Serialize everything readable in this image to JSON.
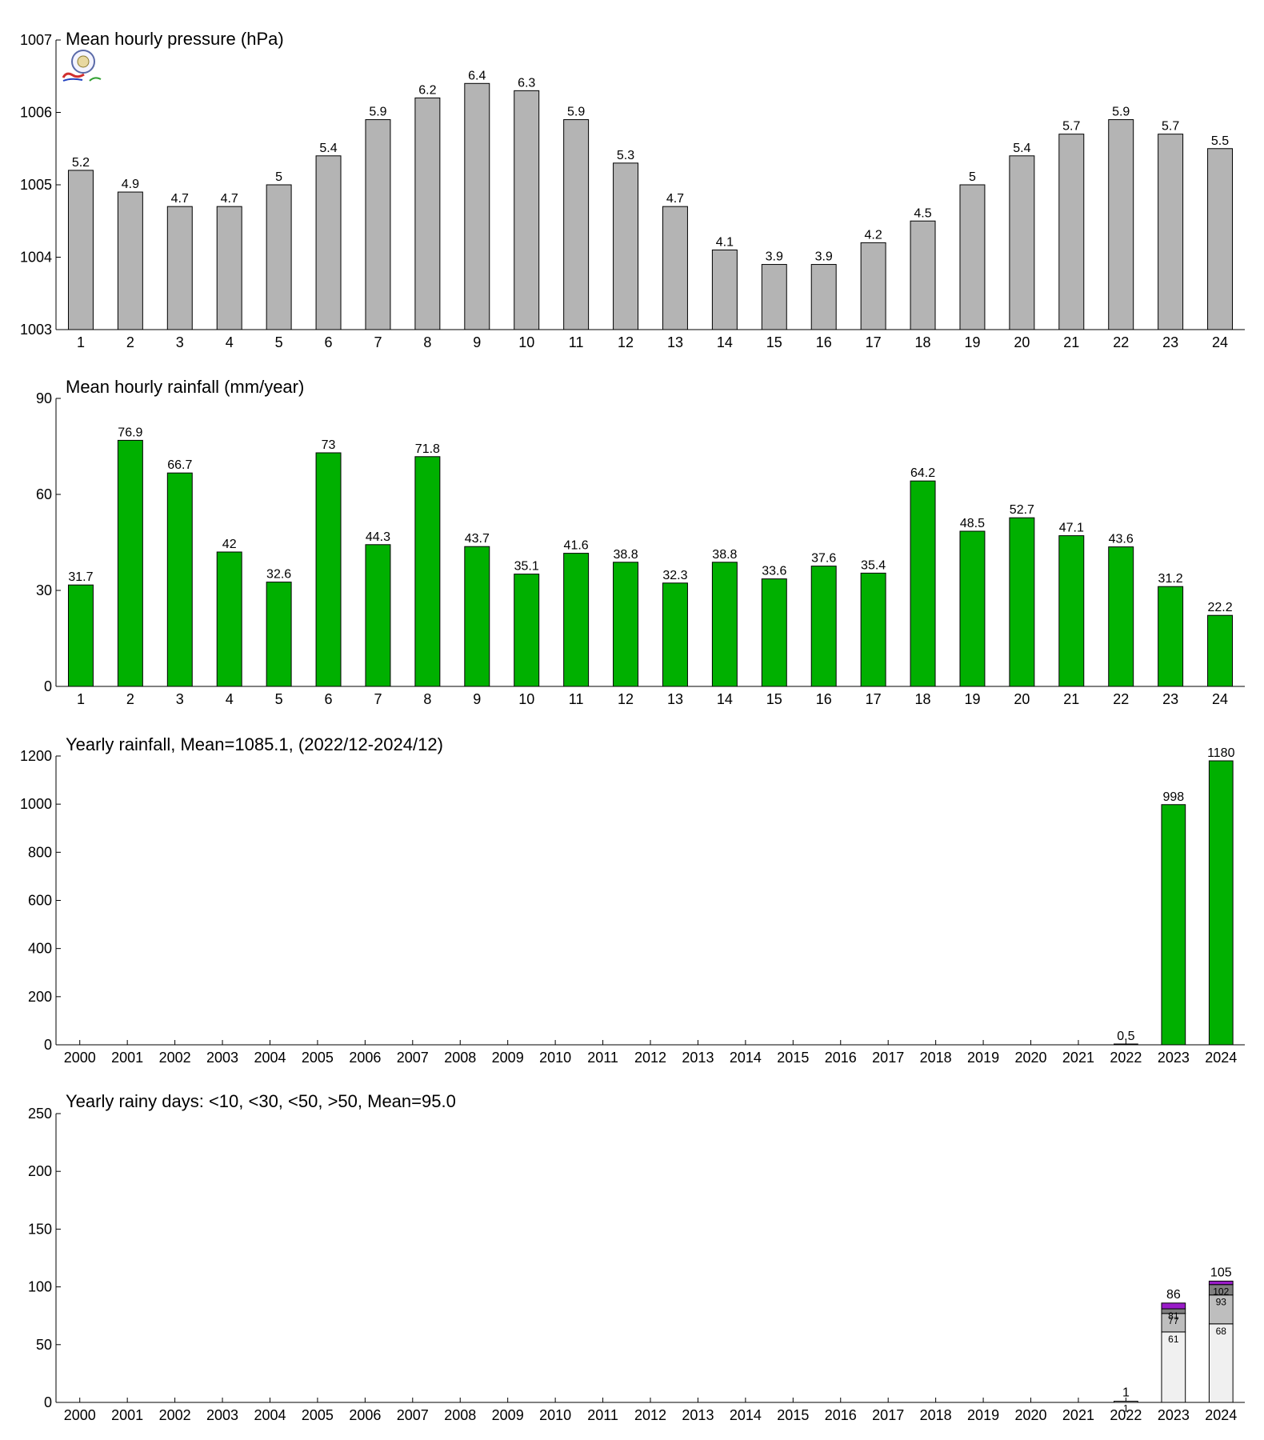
{
  "chart_data": [
    {
      "type": "bar",
      "title": "Mean hourly pressure (hPa)",
      "categories": [
        "1",
        "2",
        "3",
        "4",
        "5",
        "6",
        "7",
        "8",
        "9",
        "10",
        "11",
        "12",
        "13",
        "14",
        "15",
        "16",
        "17",
        "18",
        "19",
        "20",
        "21",
        "22",
        "23",
        "24"
      ],
      "values": [
        1005.2,
        1004.9,
        1004.7,
        1004.7,
        1005.0,
        1005.4,
        1005.9,
        1006.2,
        1006.4,
        1006.3,
        1005.9,
        1005.3,
        1004.7,
        1004.1,
        1003.9,
        1003.9,
        1004.2,
        1004.5,
        1005.0,
        1005.4,
        1005.7,
        1005.9,
        1005.7,
        1005.5
      ],
      "data_labels": [
        "5.2",
        "4.9",
        "4.7",
        "4.7",
        "5",
        "5.4",
        "5.9",
        "6.2",
        "6.4",
        "6.3",
        "5.9",
        "5.3",
        "4.7",
        "4.1",
        "3.9",
        "3.9",
        "4.2",
        "4.5",
        "5",
        "5.4",
        "5.7",
        "5.9",
        "5.7",
        "5.5"
      ],
      "ylim": [
        1003,
        1007
      ],
      "yticks": [
        "1003",
        "1004",
        "1005",
        "1006",
        "1007"
      ],
      "color": "#b4b4b4",
      "grid": false
    },
    {
      "type": "bar",
      "title": "Mean hourly rainfall (mm/year)",
      "categories": [
        "1",
        "2",
        "3",
        "4",
        "5",
        "6",
        "7",
        "8",
        "9",
        "10",
        "11",
        "12",
        "13",
        "14",
        "15",
        "16",
        "17",
        "18",
        "19",
        "20",
        "21",
        "22",
        "23",
        "24"
      ],
      "values": [
        31.7,
        76.9,
        66.7,
        42,
        32.6,
        73,
        44.3,
        71.8,
        43.7,
        35.1,
        41.6,
        38.8,
        32.3,
        38.8,
        33.6,
        37.6,
        35.4,
        64.2,
        48.5,
        52.7,
        47.1,
        43.6,
        31.2,
        22.2
      ],
      "data_labels": [
        "31.7",
        "76.9",
        "66.7",
        "42",
        "32.6",
        "73",
        "44.3",
        "71.8",
        "43.7",
        "35.1",
        "41.6",
        "38.8",
        "32.3",
        "38.8",
        "33.6",
        "37.6",
        "35.4",
        "64.2",
        "48.5",
        "52.7",
        "47.1",
        "43.6",
        "31.2",
        "22.2"
      ],
      "ylim": [
        0,
        90
      ],
      "yticks": [
        "0",
        "30",
        "60",
        "90"
      ],
      "color": "#00b000",
      "grid": false
    },
    {
      "type": "bar",
      "title": "Yearly rainfall, Mean=1085.1, (2022/12-2024/12)",
      "categories": [
        "2000",
        "2001",
        "2002",
        "2003",
        "2004",
        "2005",
        "2006",
        "2007",
        "2008",
        "2009",
        "2010",
        "2011",
        "2012",
        "2013",
        "2014",
        "2015",
        "2016",
        "2017",
        "2018",
        "2019",
        "2020",
        "2021",
        "2022",
        "2023",
        "2024"
      ],
      "values": [
        null,
        null,
        null,
        null,
        null,
        null,
        null,
        null,
        null,
        null,
        null,
        null,
        null,
        null,
        null,
        null,
        null,
        null,
        null,
        null,
        null,
        null,
        0.5,
        998,
        1180
      ],
      "data_labels": [
        "",
        "",
        "",
        "",
        "",
        "",
        "",
        "",
        "",
        "",
        "",
        "",
        "",
        "",
        "",
        "",
        "",
        "",
        "",
        "",
        "",
        "",
        "0.5",
        "998",
        "1180"
      ],
      "ylim": [
        0,
        1200
      ],
      "yticks": [
        "0",
        "200",
        "400",
        "600",
        "800",
        "1000",
        "1200"
      ],
      "color": "#00b000",
      "grid": false
    },
    {
      "type": "bar",
      "title": "Yearly rainy days: <10, <30, <50, >50, Mean=95.0",
      "categories": [
        "2000",
        "2001",
        "2002",
        "2003",
        "2004",
        "2005",
        "2006",
        "2007",
        "2008",
        "2009",
        "2010",
        "2011",
        "2012",
        "2013",
        "2014",
        "2015",
        "2016",
        "2017",
        "2018",
        "2019",
        "2020",
        "2021",
        "2022",
        "2023",
        "2024"
      ],
      "stacked_cumulative": {
        "2022": [
          1,
          1,
          1,
          1
        ],
        "2023": [
          61,
          77,
          81,
          86
        ],
        "2024": [
          68,
          93,
          102,
          105
        ]
      },
      "segment_labels": {
        "2022": [
          "1",
          "",
          "",
          ""
        ],
        "2023": [
          "61",
          "77",
          "81",
          ""
        ],
        "2024": [
          "68",
          "93",
          "102",
          ""
        ]
      },
      "total_labels": {
        "2022": "1",
        "2023": "86",
        "2024": "105"
      },
      "segment_colors": [
        "#f0f0f0",
        "#bebebe",
        "#808080",
        "#9a1cc8"
      ],
      "ylim": [
        0,
        250
      ],
      "yticks": [
        "0",
        "50",
        "100",
        "150",
        "200",
        "250"
      ],
      "grid": false
    }
  ]
}
